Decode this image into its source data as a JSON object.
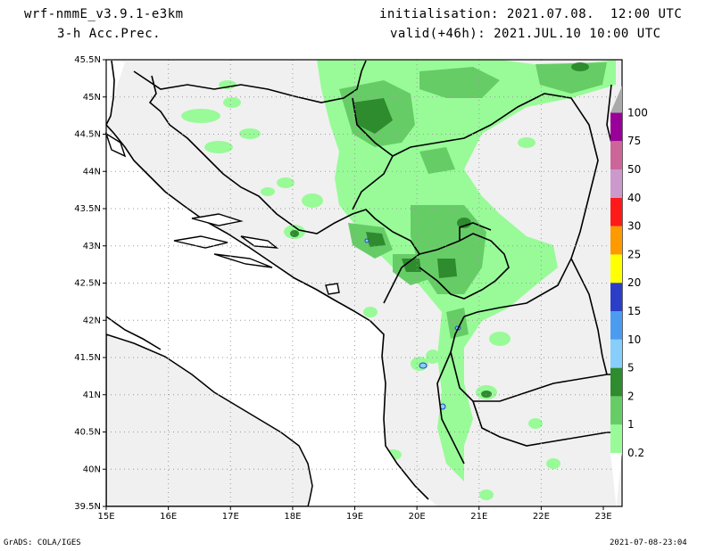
{
  "header": {
    "model": "wrf-nmmE_v3.9.1-e3km",
    "field": "3-h Acc.Prec.",
    "init": "initialisation: 2021.07.08.  12:00 UTC",
    "valid": "valid(+46h): 2021.JUL.10 10:00 UTC"
  },
  "footer": {
    "credit": "GrADS: COLA/IGES",
    "timestamp": "2021-07-08-23:04"
  },
  "axes": {
    "lon_labels": [
      "15E",
      "16E",
      "17E",
      "18E",
      "19E",
      "20E",
      "21E",
      "22E",
      "23E"
    ],
    "lat_labels": [
      "45.5N",
      "45N",
      "44.5N",
      "44N",
      "43.5N",
      "43N",
      "42.5N",
      "42N",
      "41.5N",
      "41N",
      "40.5N",
      "40N",
      "39.5N"
    ]
  },
  "colorbar": {
    "labels": [
      "0.2",
      "1",
      "2",
      "5",
      "10",
      "15",
      "20",
      "25",
      "30",
      "40",
      "50",
      "75",
      "100"
    ],
    "colors": [
      "#98fb98",
      "#66cd66",
      "#2e8b2e",
      "#87cefa",
      "#4b9cf0",
      "#2b3ec8",
      "#ffff00",
      "#ff9900",
      "#ff1a1a",
      "#cc99cc",
      "#cc6699",
      "#990099",
      "#aaaaaa"
    ]
  },
  "colors": {
    "land": "#f0f0f0",
    "sea": "#ffffff",
    "precip_light": "#98fb98",
    "precip_mid": "#66cd66",
    "precip_heavy": "#2e8b2e"
  }
}
